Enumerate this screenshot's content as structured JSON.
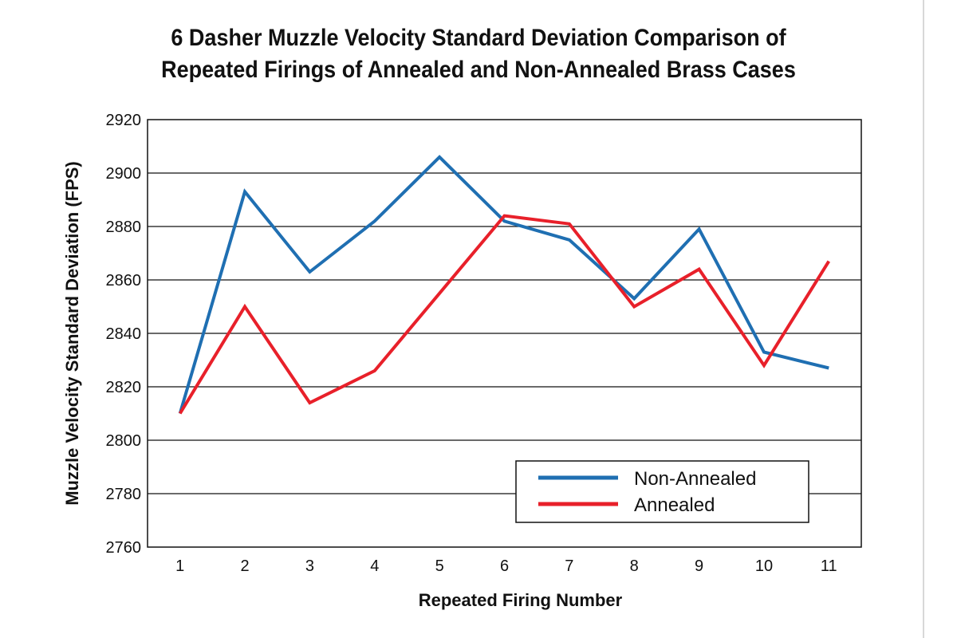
{
  "chart_data": {
    "type": "line",
    "title": "6 Dasher Muzzle Velocity Standard Deviation Comparison of Repeated Firings of Annealed and Non-Annealed Brass Cases",
    "title_lines": [
      "6 Dasher Muzzle Velocity Standard Deviation Comparison of",
      "Repeated Firings of Annealed and Non-Annealed Brass Cases"
    ],
    "xlabel": "Repeated Firing Number",
    "ylabel": "Muzzle Velocity Standard Deviation (FPS)",
    "x": [
      1,
      2,
      3,
      4,
      5,
      6,
      7,
      8,
      9,
      10,
      11
    ],
    "ylim": [
      2760,
      2920
    ],
    "yticks": [
      2760,
      2780,
      2800,
      2820,
      2840,
      2860,
      2880,
      2900,
      2920
    ],
    "grid": true,
    "legend_position": "bottom-right",
    "series": [
      {
        "name": "Non-Annealed",
        "color": "#1f6fb2",
        "values": [
          2810,
          2893,
          2863,
          2882,
          2906,
          2882,
          2875,
          2853,
          2879,
          2833,
          2827
        ]
      },
      {
        "name": "Annealed",
        "color": "#e8202a",
        "values": [
          2810,
          2850,
          2814,
          2826,
          2855,
          2884,
          2881,
          2850,
          2864,
          2828,
          2867
        ]
      }
    ]
  }
}
